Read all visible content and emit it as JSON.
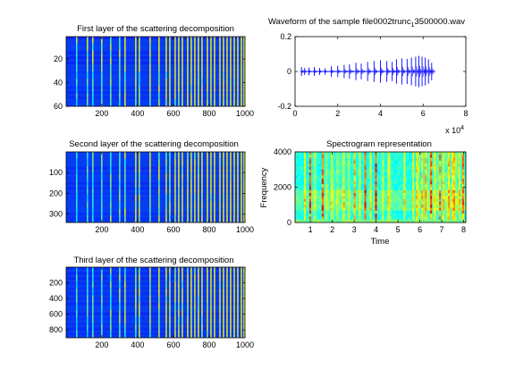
{
  "figure": {
    "background": "#ffffff"
  },
  "chart_data": [
    {
      "id": "layer1",
      "type": "heatmap",
      "title": "First layer of the scattering decomposition",
      "xlim": [
        1,
        1000
      ],
      "ylim": [
        60,
        1
      ],
      "xticks": [
        200,
        400,
        600,
        800,
        1000
      ],
      "yticks": [
        20,
        40,
        60
      ],
      "rows": 60,
      "colormap": "jet",
      "background_color": "#0a3cf0",
      "bright_columns": [
        60,
        120,
        150,
        200,
        250,
        300,
        330,
        390,
        410,
        470,
        520,
        560,
        580,
        610,
        630,
        650,
        680,
        700,
        720,
        740,
        760,
        790,
        810,
        830,
        860,
        880,
        900,
        920,
        940,
        960,
        980,
        995
      ]
    },
    {
      "id": "layer2",
      "type": "heatmap",
      "title": "Second layer of the scattering decomposition",
      "xlim": [
        1,
        1000
      ],
      "ylim": [
        340,
        1
      ],
      "xticks": [
        200,
        400,
        600,
        800,
        1000
      ],
      "yticks": [
        100,
        200,
        300
      ],
      "rows": 340,
      "colormap": "jet",
      "background_color": "#0a3cf0",
      "bright_columns": [
        60,
        120,
        150,
        200,
        250,
        300,
        330,
        390,
        410,
        470,
        520,
        560,
        580,
        610,
        630,
        650,
        680,
        700,
        720,
        740,
        760,
        790,
        810,
        830,
        860,
        880,
        900,
        920,
        940,
        960,
        980,
        995
      ]
    },
    {
      "id": "layer3",
      "type": "heatmap",
      "title": "Third layer of the scattering decomposition",
      "xlim": [
        1,
        1000
      ],
      "ylim": [
        900,
        1
      ],
      "xticks": [
        200,
        400,
        600,
        800,
        1000
      ],
      "yticks": [
        200,
        400,
        600,
        800
      ],
      "rows": 900,
      "colormap": "jet",
      "background_color": "#0a3cf0",
      "bright_columns": [
        60,
        120,
        150,
        200,
        250,
        300,
        330,
        390,
        410,
        470,
        520,
        560,
        580,
        610,
        630,
        650,
        680,
        700,
        720,
        740,
        760,
        790,
        810,
        830,
        860,
        880,
        900,
        920,
        940,
        960,
        980,
        995
      ]
    },
    {
      "id": "waveform",
      "type": "line",
      "title": "Waveform of the sample file0002trunc",
      "title_subscript": "1",
      "title_suffix": "3500000.wav",
      "xlim": [
        0,
        80000
      ],
      "ylim": [
        -0.2,
        0.2
      ],
      "xticks": [
        0,
        2,
        4,
        6,
        8
      ],
      "xtick_multiplier": "x 10",
      "xtick_multiplier_exp": "4",
      "yticks": [
        -0.2,
        0,
        0.2
      ],
      "ytick_labels": [
        "-0.2",
        "0",
        "0.2"
      ],
      "signal_end": 65000,
      "line_color": "#0000ff",
      "bursts": [
        {
          "x": 3000,
          "amp": 0.025
        },
        {
          "x": 4500,
          "amp": 0.02
        },
        {
          "x": 6500,
          "amp": 0.022
        },
        {
          "x": 9000,
          "amp": 0.025
        },
        {
          "x": 11500,
          "amp": 0.02
        },
        {
          "x": 14000,
          "amp": 0.018
        },
        {
          "x": 17000,
          "amp": 0.03
        },
        {
          "x": 20000,
          "amp": 0.032
        },
        {
          "x": 23000,
          "amp": 0.038
        },
        {
          "x": 25500,
          "amp": 0.042
        },
        {
          "x": 28500,
          "amp": 0.05
        },
        {
          "x": 31000,
          "amp": 0.045
        },
        {
          "x": 34000,
          "amp": 0.055
        },
        {
          "x": 37000,
          "amp": 0.06
        },
        {
          "x": 40000,
          "amp": 0.065
        },
        {
          "x": 43000,
          "amp": 0.06
        },
        {
          "x": 45500,
          "amp": 0.055
        },
        {
          "x": 47500,
          "amp": 0.07
        },
        {
          "x": 50000,
          "amp": 0.075
        },
        {
          "x": 52500,
          "amp": 0.072
        },
        {
          "x": 54500,
          "amp": 0.08
        },
        {
          "x": 56500,
          "amp": 0.085
        },
        {
          "x": 58000,
          "amp": 0.09
        },
        {
          "x": 59500,
          "amp": 0.085
        },
        {
          "x": 61000,
          "amp": 0.08
        },
        {
          "x": 62500,
          "amp": 0.07
        },
        {
          "x": 64000,
          "amp": 0.05
        }
      ]
    },
    {
      "id": "spectrogram",
      "type": "heatmap",
      "title": "Spectrogram representation",
      "xlabel": "Time",
      "ylabel": "Frequency",
      "xlim": [
        0.3,
        8.1
      ],
      "ylim": [
        0,
        4000
      ],
      "xticks": [
        2,
        4,
        6,
        8
      ],
      "xticks_minor": [
        1,
        3,
        5,
        7
      ],
      "yticks": [
        0,
        2000,
        4000
      ],
      "colormap": "jet",
      "red_columns": [
        1.0,
        1.55,
        2.0,
        2.5,
        3.0,
        3.5,
        4.0,
        4.6,
        5.9,
        6.3,
        6.5,
        6.9,
        7.3,
        7.6,
        8.0
      ],
      "light_columns": [
        0.75,
        1.2,
        1.75,
        2.25,
        2.75,
        3.25,
        3.75,
        4.3,
        5.3,
        5.7,
        6.1,
        6.7,
        7.1,
        7.5,
        7.8
      ]
    }
  ]
}
